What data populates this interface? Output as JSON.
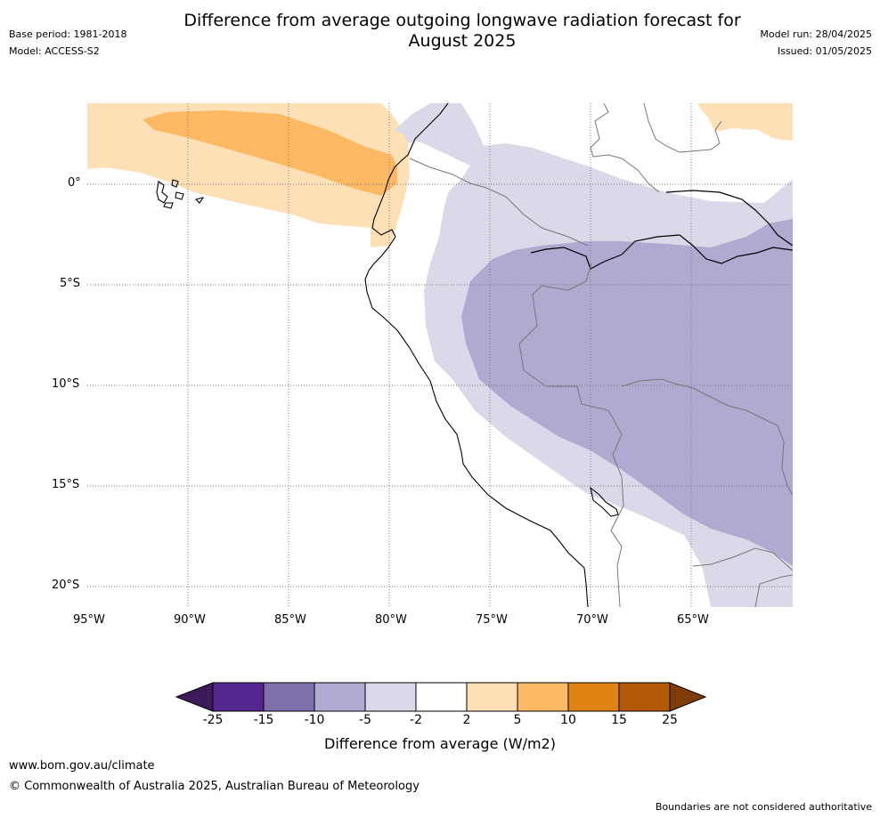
{
  "header": {
    "title_line1": "Difference from average outgoing longwave radiation forecast for",
    "title_line2": "August 2025",
    "base_period": "Base period: 1981-2018",
    "model": "Model: ACCESS-S2",
    "model_run": "Model run: 28/04/2025",
    "issued": "Issued: 01/05/2025"
  },
  "map": {
    "x_ticks": [
      "95°W",
      "90°W",
      "85°W",
      "80°W",
      "75°W",
      "70°W",
      "65°W"
    ],
    "y_ticks": [
      "0°",
      "5°S",
      "10°S",
      "15°S",
      "20°S"
    ],
    "colors": {
      "neg25": "#3f1a5a",
      "neg15": "#54278f",
      "neg10": "#7f6faa",
      "neg5": "#b0a9d0",
      "neg2": "#d9d9ea",
      "neutral": "#ffffff",
      "pos2": "#fee0b6",
      "pos5": "#fdb863",
      "pos10": "#e08214",
      "pos15": "#b35806",
      "pos25": "#7f3b08"
    }
  },
  "colorbar": {
    "labels": [
      "-25",
      "-15",
      "-10",
      "-5",
      "-2",
      "2",
      "5",
      "10",
      "15",
      "25"
    ],
    "title": "Difference from average (W/m2)"
  },
  "footer": {
    "website": "www.bom.gov.au/climate",
    "copyright": "© Commonwealth of Australia 2025, Australian Bureau of Meteorology",
    "disclaimer": "Boundaries are not considered authoritative"
  }
}
